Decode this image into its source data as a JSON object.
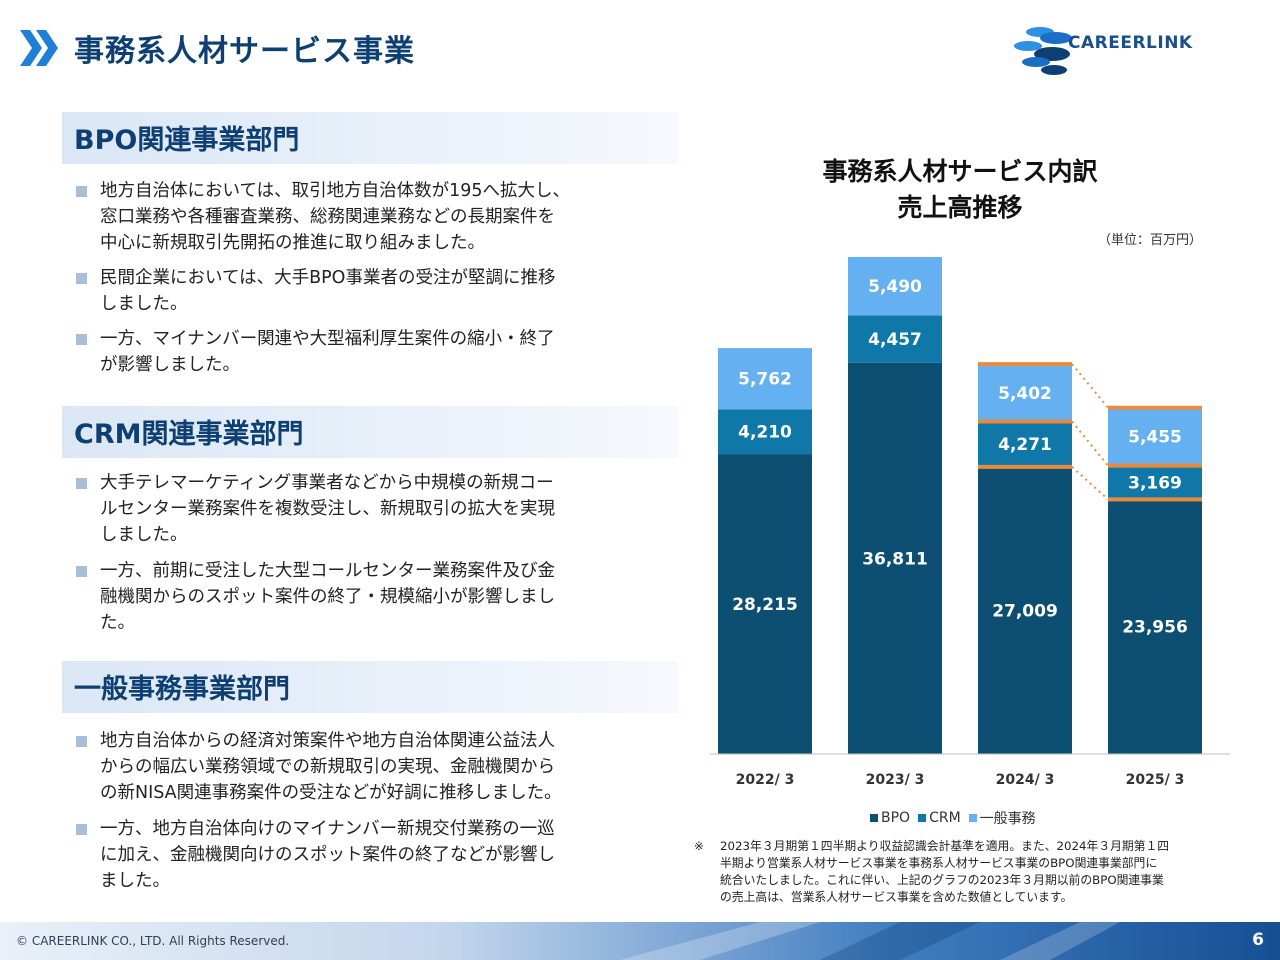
{
  "page_title": "事務系人材サービス事業",
  "logo_text": "CAREERLINK",
  "sections": [
    {
      "heading": "BPO関連事業部門",
      "bullets": [
        [
          "地方自治体においては、取引地方自治体数が195へ拡大し、",
          "窓口業務や各種審査業務、総務関連業務などの長期案件を",
          "中心に新規取引先開拓の推進に取り組みました。"
        ],
        [
          "民間企業においては、大手BPO事業者の受注が堅調に推移",
          "しました。"
        ],
        [
          "一方、マイナンバー関連や大型福利厚生案件の縮小・終了",
          "が影響しました。"
        ]
      ]
    },
    {
      "heading": "CRM関連事業部門",
      "bullets": [
        [
          "大手テレマーケティング事業者などから中規模の新規コー",
          "ルセンター業務案件を複数受注し、新規取引の拡大を実現",
          "しました。"
        ],
        [
          "一方、前期に受注した大型コールセンター業務案件及び金",
          "融機関からのスポット案件の終了・規模縮小が影響しまし",
          "た。"
        ]
      ]
    },
    {
      "heading": "一般事務事業部門",
      "bullets": [
        [
          "地方自治体からの経済対策案件や地方自治体関連公益法人",
          "からの幅広い業務領域での新規取引の実現、金融機関から",
          "の新NISA関連事務案件の受注などが好調に推移しました。"
        ],
        [
          "一方、地方自治体向けのマイナンバー新規交付業務の一巡",
          "に加え、金融機関向けのスポット案件の終了などが影響し",
          "ました。"
        ]
      ]
    }
  ],
  "chart_title_line1": "事務系人材サービス内訳",
  "chart_title_line2": "売上高推移",
  "unit_label": "（単位：百万円）",
  "chart_data": {
    "type": "bar",
    "stacked": true,
    "categories": [
      "2022/ 3",
      "2023/ 3",
      "2024/ 3",
      "2025/ 3"
    ],
    "series": [
      {
        "name": "BPO",
        "values": [
          28215,
          36811,
          27009,
          23956
        ],
        "labels": [
          "28,215",
          "36,811",
          "27,009",
          "23,956"
        ],
        "color": "#0d4f72"
      },
      {
        "name": "CRM",
        "values": [
          4210,
          4457,
          4271,
          3169
        ],
        "labels": [
          "4,210",
          "4,457",
          "4,271",
          "3,169"
        ],
        "color": "#0f78a8"
      },
      {
        "name": "一般事務",
        "values": [
          5762,
          5490,
          5402,
          5455
        ],
        "labels": [
          "5,762",
          "5,490",
          "5,402",
          "5,455"
        ],
        "color": "#64b0f0"
      }
    ],
    "highlight_color": "#e98a3c",
    "legend_position": "bottom"
  },
  "note_mark": "※",
  "note_lines": [
    "2023年３月期第１四半期より収益認識会計基準を適用。また、2024年３月期第１四",
    "半期より営業系人材サービス事業を事務系人材サービス事業のBPO関連事業部門に",
    "統合いたしました。これに伴い、上記のグラフの2023年３月期以前のBPO関連事業",
    "の売上高は、営業系人材サービス事業を含めた数値としています。"
  ],
  "copyright": "© CAREERLINK CO., LTD. All Rights Reserved.",
  "page_number": "6"
}
